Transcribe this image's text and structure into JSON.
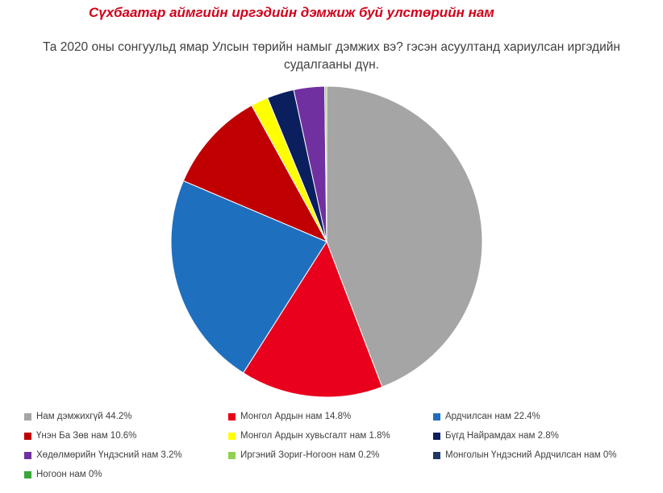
{
  "chart_data": {
    "type": "pie",
    "title": "Сүхбаатар аймгийн иргэдийн дэмжиж буй улстөрийн нам",
    "subtitle": "Та 2020 оны сонгуульд ямар Улсын төрийн намыг дэмжих вэ? гэсэн асуултанд хариулсан иргэдийн судалгааны дүн.",
    "categories": [
      "Нам дэмжихгүй 44.2%",
      "Монгол Ардын нам 14.8%",
      "Ардчилсан нам 22.4%",
      "Үнэн Ба Зөв нам 10.6%",
      "Монгол Ардын хувьсгалт нам 1.8%",
      "Бүгд Найрамдах нам 2.8%",
      "Хөдөлмөрийн Үндэсний нам 3.2%",
      "Иргэний Зориг-Ногоон нам 0.2%",
      "Монголын Үндэсний Ардчилсан нам 0%",
      "Ногоон нам 0%"
    ],
    "values": [
      44.2,
      14.8,
      22.4,
      10.6,
      1.8,
      2.8,
      3.2,
      0.2,
      0,
      0
    ],
    "colors": [
      "#a5a5a5",
      "#e8001c",
      "#1f6fbf",
      "#c00000",
      "#ffff00",
      "#0b1f5e",
      "#7030a0",
      "#92d050",
      "#1f3864",
      "#3aa63a"
    ],
    "legend": "bottom"
  }
}
